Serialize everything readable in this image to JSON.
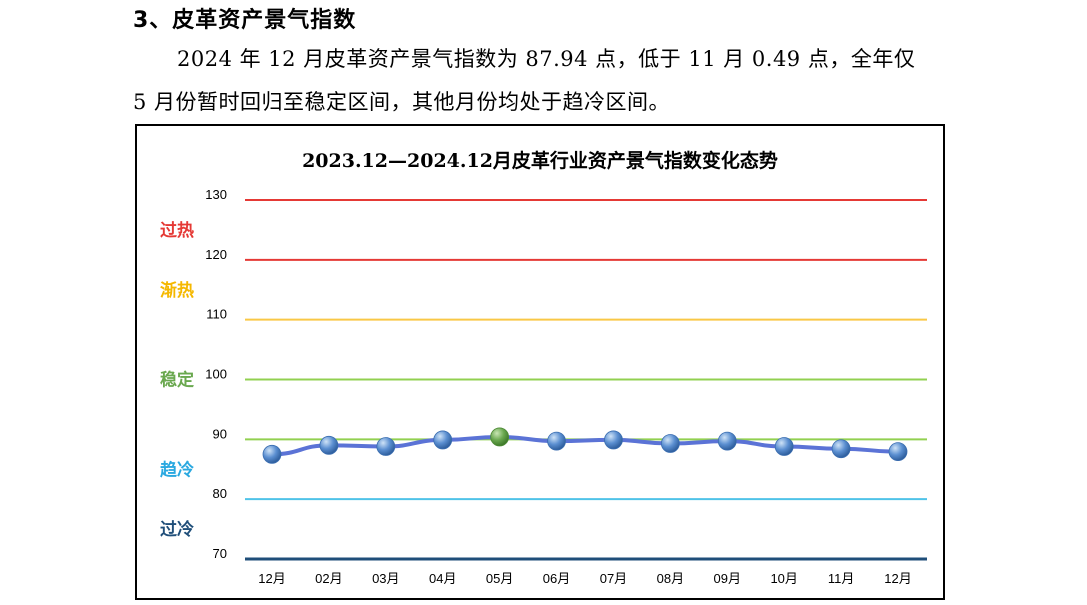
{
  "section": {
    "heading": "3、皮革资产景气指数"
  },
  "paragraph": {
    "line1": "2024 年 12 月皮革资产景气指数为 87.94 点，低于 11 月 0.49 点，全年仅",
    "line2": "5 月份暂时回归至稳定区间，其他月份均处于趋冷区间。"
  },
  "colors": {
    "line": "#5b73d6",
    "marker": "#5b8fd1",
    "highlight_marker": "#6aa84f",
    "overheat": "#e53935",
    "warming": "#f9c846",
    "stable": "#92d050",
    "cooling": "#4fc3e8",
    "overcool": "#1f4e79"
  },
  "chart_data": {
    "type": "line",
    "title": "2023.12—2024.12月皮革行业资产景气指数变化态势",
    "categories": [
      "12月",
      "02月",
      "03月",
      "04月",
      "05月",
      "06月",
      "07月",
      "08月",
      "09月",
      "10月",
      "11月",
      "12月"
    ],
    "series": [
      {
        "values": [
          87.5,
          89.0,
          88.8,
          89.9,
          90.4,
          89.7,
          89.9,
          89.3,
          89.7,
          88.8,
          88.43,
          87.94
        ]
      }
    ],
    "highlight_index": 4,
    "ylim": [
      70,
      130
    ],
    "yticks": [
      70,
      80,
      90,
      100,
      110,
      120,
      130
    ],
    "threshold_lines": [
      {
        "value": 130,
        "color": "#e53935"
      },
      {
        "value": 120,
        "color": "#e53935"
      },
      {
        "value": 110,
        "color": "#f9c846"
      },
      {
        "value": 100,
        "color": "#92d050"
      },
      {
        "value": 90,
        "color": "#92d050"
      },
      {
        "value": 80,
        "color": "#4fc3e8"
      },
      {
        "value": 70,
        "color": "#1f4e79"
      }
    ],
    "zones": [
      {
        "label": "过热",
        "value": 125,
        "color": "#e53935"
      },
      {
        "label": "渐热",
        "value": 115,
        "color": "#f5b800"
      },
      {
        "label": "稳定",
        "value": 100,
        "color": "#6aa84f"
      },
      {
        "label": "趋冷",
        "value": 85,
        "color": "#29a8e0"
      },
      {
        "label": "过冷",
        "value": 75,
        "color": "#1f4e79"
      }
    ]
  }
}
